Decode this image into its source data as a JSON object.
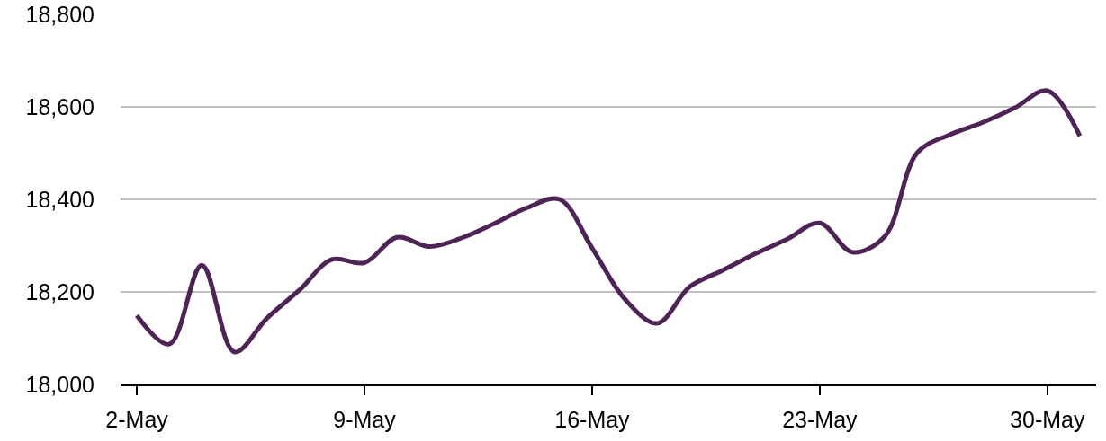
{
  "chart_data": {
    "type": "line",
    "x": [
      "--05-02",
      "--05-03",
      "--05-04",
      "--05-05",
      "--05-06",
      "--05-07",
      "--05-08",
      "--05-09",
      "--05-10",
      "--05-11",
      "--05-12",
      "--05-13",
      "--05-14",
      "--05-15",
      "--05-16",
      "--05-17",
      "--05-18",
      "--05-19",
      "--05-20",
      "--05-21",
      "--05-22",
      "--05-23",
      "--05-24",
      "--05-25",
      "--05-26",
      "--05-27",
      "--05-28",
      "--05-29",
      "--05-30",
      "--05-31"
    ],
    "series": [
      {
        "color": "#4e2457",
        "values": [
          18149,
          18087,
          18258,
          18070,
          18143,
          18204,
          18270,
          18263,
          18318,
          18298,
          18317,
          18348,
          18382,
          18400,
          18295,
          18185,
          18132,
          18211,
          18246,
          18282,
          18314,
          18349,
          18286,
          18320,
          18501,
          18540,
          18566,
          18598,
          18635,
          18537
        ]
      }
    ],
    "xlim": [
      "--05-01T12:00",
      "--05-31T12:00"
    ],
    "xticks": [
      {
        "value": "--05-02",
        "label": "2-May"
      },
      {
        "value": "--05-09",
        "label": "9-May"
      },
      {
        "value": "--05-16",
        "label": "16-May"
      },
      {
        "value": "--05-23",
        "label": "23-May"
      },
      {
        "value": "--05-30",
        "label": "30-May"
      }
    ],
    "ylim": [
      18000,
      18800
    ],
    "yticks": [
      {
        "value": 18000,
        "label": "18,000"
      },
      {
        "value": 18200,
        "label": "18,200"
      },
      {
        "value": 18400,
        "label": "18,400"
      },
      {
        "value": 18600,
        "label": "18,600"
      },
      {
        "value": 18800,
        "label": "18,800"
      }
    ],
    "grid": "y",
    "line_style": "solid"
  }
}
